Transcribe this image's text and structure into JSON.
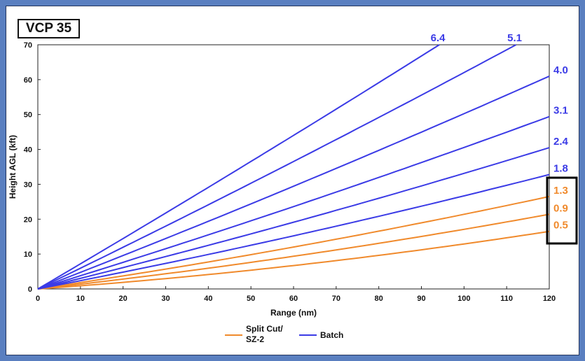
{
  "title": "VCP 35",
  "colors": {
    "batch": "#3b3be6",
    "split_cut": "#f08a2c",
    "highlight_box": "#000000"
  },
  "chart_data": {
    "type": "line",
    "xlabel": "Range (nm)",
    "ylabel": "Height AGL (kft)",
    "xlim": [
      0,
      120
    ],
    "ylim": [
      0,
      70
    ],
    "x_ticks": [
      "0",
      "10",
      "20",
      "30",
      "40",
      "50",
      "60",
      "70",
      "80",
      "90",
      "100",
      "110",
      "120"
    ],
    "y_ticks": [
      "0",
      "10",
      "20",
      "30",
      "40",
      "50",
      "60",
      "70"
    ],
    "grid": false,
    "legend_position": "bottom-center",
    "legend": [
      {
        "name": "Split Cut/\nSZ-2",
        "line1": "Split Cut/",
        "line2": "SZ-2",
        "color": "#f08a2c"
      },
      {
        "name": "Batch",
        "color": "#3b3be6"
      }
    ],
    "series": [
      {
        "name": "0.5",
        "group": "split_cut",
        "elevation_deg": 0.5,
        "x": [
          0,
          120
        ],
        "y": [
          0,
          16.5
        ]
      },
      {
        "name": "0.9",
        "group": "split_cut",
        "elevation_deg": 0.9,
        "x": [
          0,
          120
        ],
        "y": [
          0,
          21.4
        ]
      },
      {
        "name": "1.3",
        "group": "split_cut",
        "elevation_deg": 1.3,
        "x": [
          0,
          120
        ],
        "y": [
          0,
          26.5
        ]
      },
      {
        "name": "1.8",
        "group": "batch",
        "elevation_deg": 1.8,
        "x": [
          0,
          120
        ],
        "y": [
          0,
          32.8
        ]
      },
      {
        "name": "2.4",
        "group": "batch",
        "elevation_deg": 2.4,
        "x": [
          0,
          120
        ],
        "y": [
          0,
          40.5
        ]
      },
      {
        "name": "3.1",
        "group": "batch",
        "elevation_deg": 3.1,
        "x": [
          0,
          120
        ],
        "y": [
          0,
          49.4
        ]
      },
      {
        "name": "4.0",
        "group": "batch",
        "elevation_deg": 4.0,
        "x": [
          0,
          120
        ],
        "y": [
          0,
          61.0
        ]
      },
      {
        "name": "5.1",
        "group": "batch",
        "elevation_deg": 5.1,
        "x": [
          0,
          112.2
        ],
        "y": [
          0,
          70
        ]
      },
      {
        "name": "6.4",
        "group": "batch",
        "elevation_deg": 6.4,
        "x": [
          0,
          94.2
        ],
        "y": [
          0,
          70
        ]
      }
    ]
  }
}
